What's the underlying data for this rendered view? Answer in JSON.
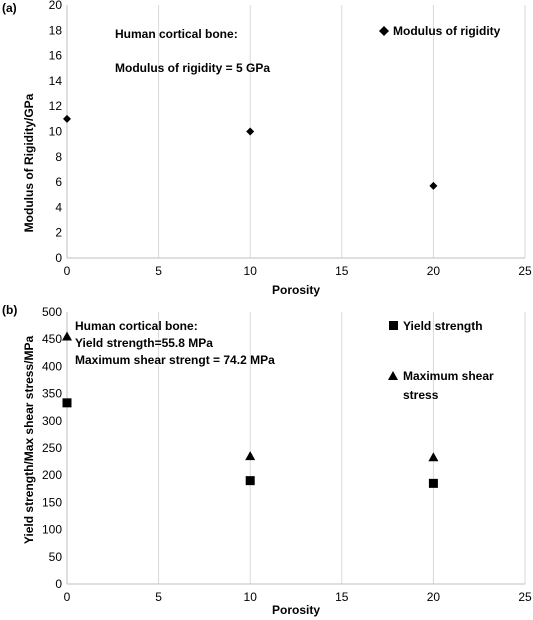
{
  "chart_data": [
    {
      "type": "scatter",
      "panel_label": "(a)",
      "xlabel": "Porosity",
      "ylabel": "Modulus of Rigidity/GPa",
      "xlim": [
        0,
        25
      ],
      "ylim": [
        0,
        20
      ],
      "xticks": [
        "0",
        "5",
        "10",
        "15",
        "20",
        "25"
      ],
      "yticks": [
        "0",
        "2",
        "4",
        "6",
        "8",
        "10",
        "12",
        "14",
        "16",
        "18",
        "20"
      ],
      "grid": "vertical",
      "legend_position": "top-right",
      "annotations": [
        "Human cortical bone:",
        "Modulus of rigidity = 5 GPa"
      ],
      "series": [
        {
          "name": "Modulus of rigidity",
          "marker": "diamond",
          "x": [
            0,
            10,
            20
          ],
          "y": [
            11,
            10,
            5.7
          ]
        }
      ]
    },
    {
      "type": "scatter",
      "panel_label": "(b)",
      "xlabel": "Porosity",
      "ylabel": "Yield strength/Max shear stress/MPa",
      "xlim": [
        0,
        25
      ],
      "ylim": [
        0,
        500
      ],
      "xticks": [
        "0",
        "5",
        "10",
        "15",
        "20",
        "25"
      ],
      "yticks": [
        "0",
        "50",
        "100",
        "150",
        "200",
        "250",
        "300",
        "350",
        "400",
        "450",
        "500"
      ],
      "grid": "vertical",
      "legend_position": "top-right",
      "annotations": [
        "Human cortical bone:",
        "Yield strength=55.8 MPa",
        "Maximum shear strengt = 74.2 MPa"
      ],
      "series": [
        {
          "name": "Yield strength",
          "marker": "square",
          "x": [
            0,
            10,
            20
          ],
          "y": [
            333,
            190,
            185
          ]
        },
        {
          "name": "Maximum shear stress",
          "legend_lines": [
            "Maximum shear",
            "stress"
          ],
          "marker": "triangle",
          "x": [
            0,
            10,
            20
          ],
          "y": [
            455,
            235,
            233
          ]
        }
      ]
    }
  ]
}
